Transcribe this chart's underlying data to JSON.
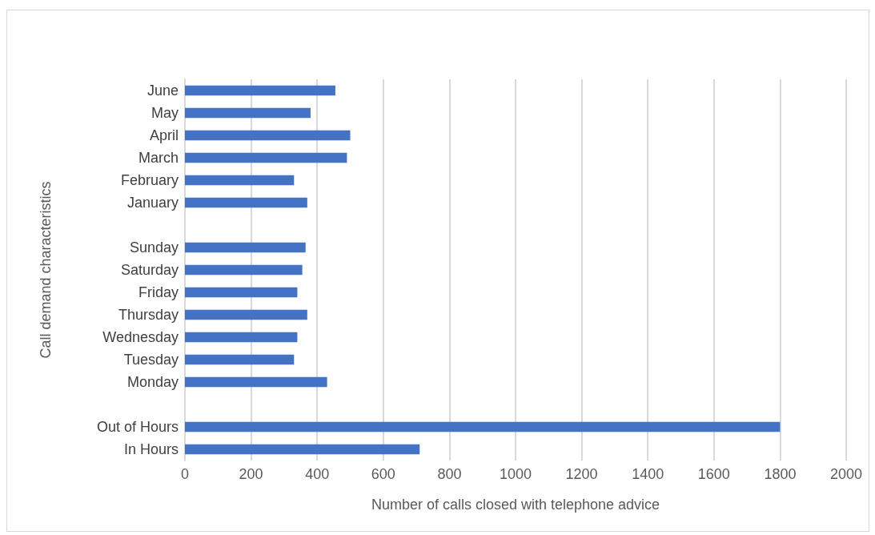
{
  "chart_data": {
    "type": "bar",
    "orientation": "horizontal",
    "xlabel": "Number of calls closed with telephone advice",
    "ylabel": "Call demand characteristics",
    "categories": [
      "June",
      "May",
      "April",
      "March",
      "February",
      "January",
      null,
      "Sunday",
      "Saturday",
      "Friday",
      "Thursday",
      "Wednesday",
      "Tuesday",
      "Monday",
      null,
      "Out of Hours",
      "In Hours"
    ],
    "values": [
      455,
      380,
      500,
      490,
      330,
      370,
      null,
      365,
      355,
      340,
      370,
      340,
      330,
      430,
      null,
      1800,
      710
    ],
    "color": "#4472c4",
    "xlim": [
      0,
      2000
    ],
    "xticks": [
      0,
      200,
      400,
      600,
      800,
      1000,
      1200,
      1400,
      1600,
      1800,
      2000
    ],
    "grid": "x"
  }
}
